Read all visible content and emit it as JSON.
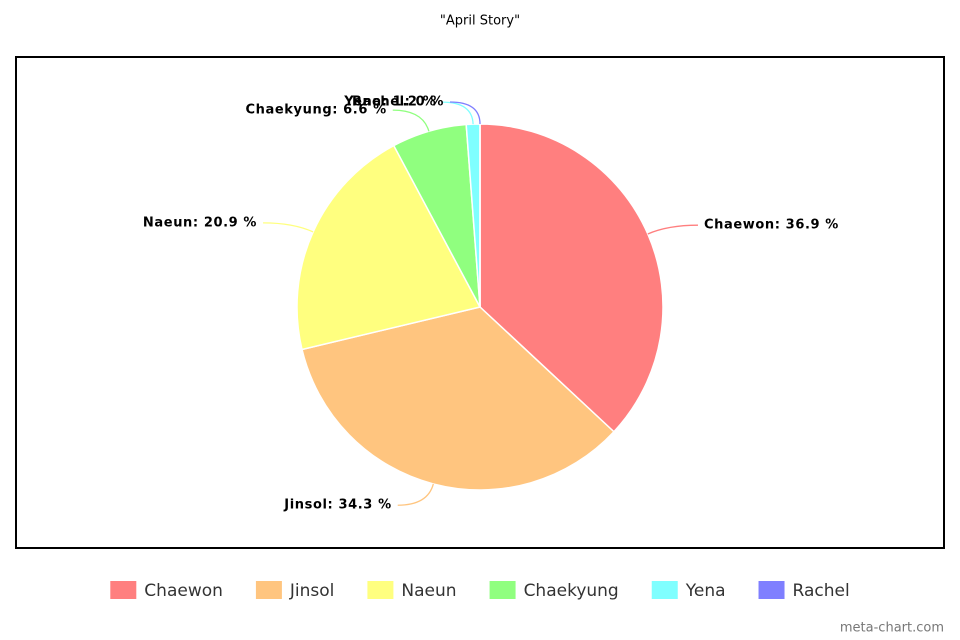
{
  "chart_data": {
    "type": "pie",
    "title": "\"April Story\"",
    "categories": [
      "Chaewon",
      "Jinsol",
      "Naeun",
      "Chaekyung",
      "Yena",
      "Rachel"
    ],
    "values": [
      36.9,
      34.3,
      20.9,
      6.6,
      1.2,
      0
    ],
    "value_labels": [
      "Chaewon: 36.9 %",
      "Jinsol: 34.3 %",
      "Naeun: 20.9 %",
      "Chaekyung: 6.6 %",
      "Yena: 1.2 %",
      "Rachel: 0 %"
    ],
    "colors": [
      "#ff7f7f",
      "#ffc57f",
      "#ffff7f",
      "#90ff7f",
      "#7fffff",
      "#7f7fff"
    ],
    "legend": "bottom",
    "watermark": "meta-chart.com"
  }
}
